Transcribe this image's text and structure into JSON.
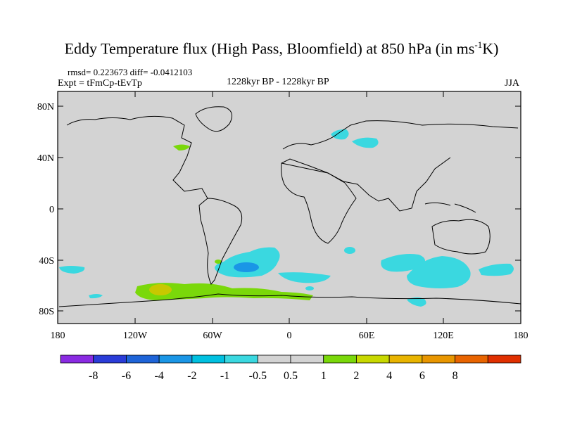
{
  "title": {
    "main": "Eddy Temperature flux (High Pass, Bloomfield) at 850 hPa (in ms",
    "sup": "-1",
    "end": "K)"
  },
  "stats": "rmsd= 0.223673 diff= -0.0412103",
  "experiment": "Expt = tFmCp-tEvTp",
  "period": "1228kyr BP - 1228kyr BP",
  "season": "JJA",
  "lat_labels": [
    "80N",
    "40N",
    "0",
    "40S",
    "80S"
  ],
  "lon_labels": [
    "180",
    "120W",
    "60W",
    "0",
    "60E",
    "120E",
    "180"
  ],
  "colorbar": {
    "colors": [
      "#8a2be2",
      "#2a3cd8",
      "#1e64d8",
      "#1a96e6",
      "#00c0e0",
      "#3ad8e0",
      "#d3d3d3",
      "#d3d3d3",
      "#7ad80a",
      "#c8d800",
      "#e8b400",
      "#e89600",
      "#e86400",
      "#e03000"
    ],
    "labels": [
      "-8",
      "-6",
      "-4",
      "-2",
      "-1",
      "-0.5",
      "0.5",
      "1",
      "2",
      "4",
      "6",
      "8"
    ]
  },
  "colors": {
    "ocean_land": "#d3d3d3",
    "cyan_light": "#3ad8e0",
    "cyan_mid": "#1a96e6",
    "green": "#7ad80a",
    "yellow": "#c8c800"
  }
}
